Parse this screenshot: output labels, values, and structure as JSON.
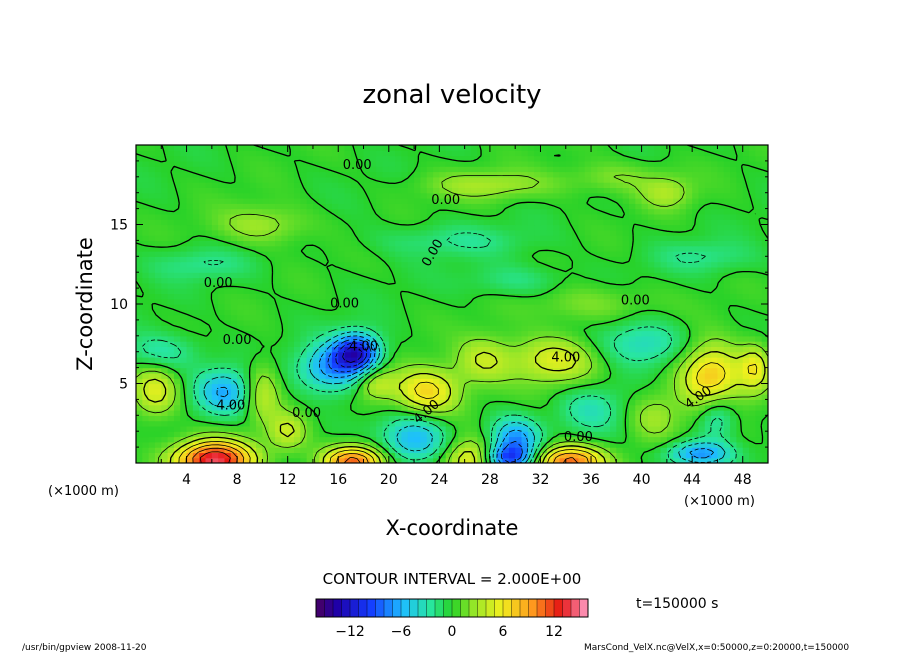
{
  "chart_data": {
    "type": "heatmap",
    "title": "zonal velocity",
    "xlabel": "X-coordinate",
    "ylabel": "Z-coordinate",
    "x_unit": "(×1000 m)",
    "y_unit": "(×1000 m)",
    "xlim": [
      0,
      50
    ],
    "ylim": [
      0,
      20
    ],
    "x_ticks": [
      "4",
      "8",
      "12",
      "16",
      "20",
      "24",
      "28",
      "32",
      "36",
      "40",
      "44",
      "48"
    ],
    "y_ticks": [
      "5",
      "10",
      "15"
    ],
    "contour_interval_text": "CONTOUR INTERVAL = 2.000E+00",
    "time_label": "t=150000 s",
    "colorbar": {
      "range": [
        -16,
        16
      ],
      "ticks": [
        "−12",
        "−6",
        "0",
        "6",
        "12"
      ],
      "tick_values": [
        -12,
        -6,
        0,
        6,
        12
      ]
    },
    "contour_labels": [
      {
        "text": "0.00",
        "x": 17.5,
        "z": 18.7
      },
      {
        "text": "0.00",
        "x": 24.5,
        "z": 16.5
      },
      {
        "text": "0.00",
        "x": 23.5,
        "z": 13.2,
        "rotate": -60
      },
      {
        "text": "0.00",
        "x": 6.5,
        "z": 11.3
      },
      {
        "text": "0.00",
        "x": 16.5,
        "z": 10.0
      },
      {
        "text": "0.00",
        "x": 39.5,
        "z": 10.2
      },
      {
        "text": "0.00",
        "x": 8.0,
        "z": 7.7
      },
      {
        "text": "4.00",
        "x": 18.0,
        "z": 7.3
      },
      {
        "text": "4.00",
        "x": 34.0,
        "z": 6.6
      },
      {
        "text": "4.00",
        "x": 7.5,
        "z": 3.6
      },
      {
        "text": "0.00",
        "x": 13.5,
        "z": 3.1
      },
      {
        "text": "4.00",
        "x": 23.0,
        "z": 3.2,
        "rotate": -40
      },
      {
        "text": "4.00",
        "x": 44.5,
        "z": 4.1,
        "rotate": -35
      },
      {
        "text": "0.00",
        "x": 35.0,
        "z": 1.6
      }
    ],
    "features": [
      {
        "x": 6.2,
        "z": 0.2,
        "value": 14,
        "sx": 3.0,
        "sz": 1.2
      },
      {
        "x": 17.2,
        "z": 0.1,
        "value": 11,
        "sx": 2.4,
        "sz": 1.0
      },
      {
        "x": 34.2,
        "z": 0.1,
        "value": 11,
        "sx": 2.8,
        "sz": 1.0
      },
      {
        "x": 26.5,
        "z": 0.2,
        "value": 6,
        "sx": 2.0,
        "sz": 1.2
      },
      {
        "x": 17.5,
        "z": 7.0,
        "value": -11,
        "sx": 1.8,
        "sz": 1.2
      },
      {
        "x": 15.5,
        "z": 6.0,
        "value": -7,
        "sx": 2.5,
        "sz": 1.5
      },
      {
        "x": 7.0,
        "z": 4.5,
        "value": -6,
        "sx": 2.2,
        "sz": 1.4
      },
      {
        "x": 2.0,
        "z": 7.0,
        "value": -3,
        "sx": 3.0,
        "sz": 1.2
      },
      {
        "x": 22.0,
        "z": 1.5,
        "value": -6,
        "sx": 2.5,
        "sz": 1.5
      },
      {
        "x": 30.0,
        "z": 1.5,
        "value": -7,
        "sx": 2.0,
        "sz": 1.4
      },
      {
        "x": 29.5,
        "z": 0.3,
        "value": -8,
        "sx": 2.0,
        "sz": 0.8
      },
      {
        "x": 46.0,
        "z": 3.0,
        "value": -4,
        "sx": 1.5,
        "sz": 1.5
      },
      {
        "x": 44.5,
        "z": 0.6,
        "value": -7,
        "sx": 2.5,
        "sz": 0.8
      },
      {
        "x": 40.0,
        "z": 7.5,
        "value": -4,
        "sx": 3.5,
        "sz": 1.5
      },
      {
        "x": 36.0,
        "z": 3.5,
        "value": -3,
        "sx": 2.5,
        "sz": 1.5
      },
      {
        "x": 1.5,
        "z": 4.5,
        "value": 5,
        "sx": 1.8,
        "sz": 1.6
      },
      {
        "x": 10.0,
        "z": 4.5,
        "value": 4,
        "sx": 1.4,
        "sz": 1.8
      },
      {
        "x": 23.0,
        "z": 4.5,
        "value": 7,
        "sx": 2.6,
        "sz": 1.5
      },
      {
        "x": 33.0,
        "z": 6.5,
        "value": 5,
        "sx": 3.5,
        "sz": 1.5
      },
      {
        "x": 45.5,
        "z": 5.5,
        "value": 8,
        "sx": 2.5,
        "sz": 2.0
      },
      {
        "x": 27.5,
        "z": 6.5,
        "value": 4,
        "sx": 2.2,
        "sz": 1.5
      },
      {
        "x": 49.0,
        "z": 6.0,
        "value": 5,
        "sx": 1.2,
        "sz": 1.5
      },
      {
        "x": 12.0,
        "z": 2.0,
        "value": 4,
        "sx": 1.5,
        "sz": 1.2
      },
      {
        "x": 41.0,
        "z": 3.0,
        "value": 3,
        "sx": 2.0,
        "sz": 1.5
      },
      {
        "x": 19.0,
        "z": 5.0,
        "value": 4,
        "sx": 1.5,
        "sz": 1.0
      },
      {
        "x": 10.0,
        "z": 15.0,
        "value": 3,
        "sx": 3.5,
        "sz": 1.2
      },
      {
        "x": 38.0,
        "z": 18.0,
        "value": 2,
        "sx": 4.0,
        "sz": 1.0
      },
      {
        "x": 28.0,
        "z": 17.5,
        "value": 3,
        "sx": 5.0,
        "sz": 0.9
      },
      {
        "x": 42.0,
        "z": 17.0,
        "value": 3,
        "sx": 2.0,
        "sz": 1.0
      },
      {
        "x": 5.0,
        "z": 12.5,
        "value": -2,
        "sx": 4.0,
        "sz": 1.0
      },
      {
        "x": 25.0,
        "z": 14.0,
        "value": -2,
        "sx": 6.0,
        "sz": 1.0
      },
      {
        "x": 45.0,
        "z": 13.0,
        "value": -2,
        "sx": 4.0,
        "sz": 1.0
      },
      {
        "x": 36.0,
        "z": 10.0,
        "value": 2,
        "sx": 5.0,
        "sz": 1.2
      },
      {
        "x": 30.0,
        "z": 11.5,
        "value": -2,
        "sx": 4.0,
        "sz": 1.0
      }
    ]
  },
  "footer": {
    "left": "/usr/bin/gpview   2008-11-20",
    "right": "MarsCond_VelX.nc@VelX,x=0:50000,z=0:20000,t=150000"
  }
}
